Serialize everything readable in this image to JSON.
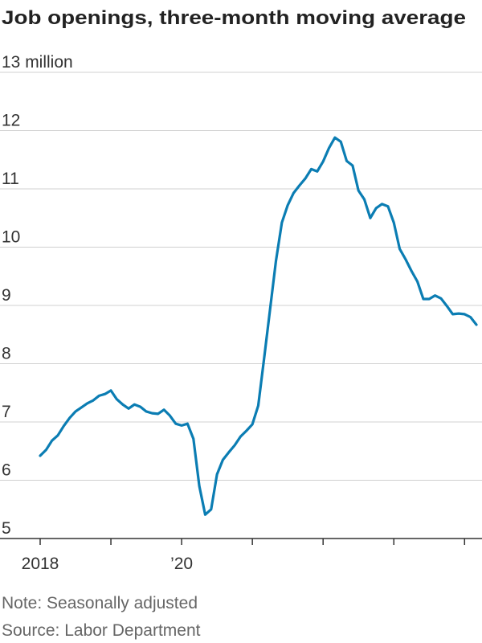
{
  "chart_data": {
    "type": "line",
    "title": "Job openings, three-month moving average",
    "notes": [
      "Note: Seasonally adjusted",
      "Source: Labor Department"
    ],
    "x": [
      2018,
      2018.083,
      2018.167,
      2018.25,
      2018.333,
      2018.417,
      2018.5,
      2018.583,
      2018.667,
      2018.75,
      2018.833,
      2018.917,
      2019,
      2019.083,
      2019.167,
      2019.25,
      2019.333,
      2019.417,
      2019.5,
      2019.583,
      2019.667,
      2019.75,
      2019.833,
      2019.917,
      2020,
      2020.083,
      2020.167,
      2020.25,
      2020.333,
      2020.417,
      2020.5,
      2020.583,
      2020.667,
      2020.75,
      2020.833,
      2020.917,
      2021,
      2021.083,
      2021.167,
      2021.25,
      2021.333,
      2021.417,
      2021.5,
      2021.583,
      2021.667,
      2021.75,
      2021.833,
      2021.917,
      2022,
      2022.083,
      2022.167,
      2022.25,
      2022.333,
      2022.417,
      2022.5,
      2022.583,
      2022.667,
      2022.75,
      2022.833,
      2022.917,
      2023,
      2023.083,
      2023.167,
      2023.25,
      2023.333,
      2023.417,
      2023.5,
      2023.583,
      2023.667,
      2023.75,
      2023.833,
      2023.917,
      2024,
      2024.083,
      2024.167
    ],
    "values": [
      6.42,
      6.52,
      6.68,
      6.77,
      6.93,
      7.07,
      7.18,
      7.25,
      7.32,
      7.37,
      7.45,
      7.48,
      7.54,
      7.39,
      7.3,
      7.23,
      7.3,
      7.26,
      7.18,
      7.15,
      7.14,
      7.21,
      7.11,
      6.97,
      6.94,
      6.97,
      6.71,
      5.9,
      5.41,
      5.5,
      6.1,
      6.35,
      6.48,
      6.6,
      6.75,
      6.85,
      6.96,
      7.28,
      8.1,
      8.93,
      9.76,
      10.42,
      10.72,
      10.93,
      11.06,
      11.18,
      11.34,
      11.3,
      11.47,
      11.7,
      11.88,
      11.81,
      11.48,
      11.4,
      10.97,
      10.82,
      10.5,
      10.67,
      10.74,
      10.7,
      10.42,
      9.97,
      9.79,
      9.59,
      9.41,
      9.11,
      9.11,
      9.17,
      9.12,
      8.99,
      8.85,
      8.86,
      8.85,
      8.8,
      8.67
    ],
    "color": "#0b7db3",
    "xlim": [
      2018,
      2024.167
    ],
    "xticks": [
      2018,
      {
        "value": 2019,
        "label": null
      },
      {
        "value": 2020,
        "label": "’20"
      },
      {
        "value": 2021,
        "label": null
      },
      {
        "value": 2022,
        "label": null
      },
      {
        "value": 2023,
        "label": null
      },
      {
        "value": 2024,
        "label": null
      }
    ],
    "ylim": [
      5,
      13
    ],
    "yticks": [
      5,
      6,
      7,
      8,
      9,
      10,
      11,
      12,
      {
        "value": 13,
        "label": "13 million"
      }
    ],
    "grid": true
  }
}
